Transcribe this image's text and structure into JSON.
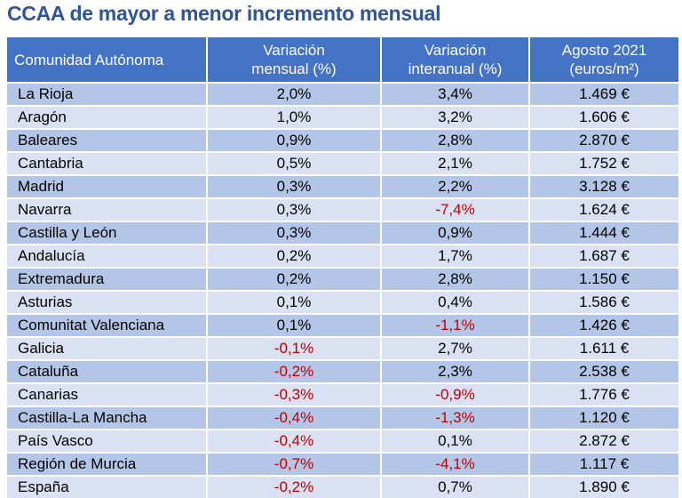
{
  "title": "CCAA de mayor a menor incremento mensual",
  "colors": {
    "header_bg": "#4472c4",
    "row_dark": "#b4c6e7",
    "row_light": "#d9e1f2",
    "negative": "#c00000",
    "title": "#2f5597"
  },
  "table": {
    "headers": [
      {
        "lines": [
          "Comunidad Autónoma"
        ]
      },
      {
        "lines": [
          "Variación",
          "mensual (%)"
        ]
      },
      {
        "lines": [
          "Variación",
          "interanual (%)"
        ]
      },
      {
        "lines": [
          "Agosto 2021",
          "(euros/m²)"
        ]
      }
    ],
    "rows": [
      [
        "La Rioja",
        "2,0%",
        "3,4%",
        "1.469 €"
      ],
      [
        "Aragón",
        "1,0%",
        "3,2%",
        "1.606 €"
      ],
      [
        "Baleares",
        "0,9%",
        "2,8%",
        "2.870 €"
      ],
      [
        "Cantabria",
        "0,5%",
        "2,1%",
        "1.752 €"
      ],
      [
        "Madrid",
        "0,3%",
        "2,2%",
        "3.128 €"
      ],
      [
        "Navarra",
        "0,3%",
        "-7,4%",
        "1.624 €"
      ],
      [
        "Castilla y León",
        "0,3%",
        "0,9%",
        "1.444 €"
      ],
      [
        "Andalucía",
        "0,2%",
        "1,7%",
        "1.687 €"
      ],
      [
        "Extremadura",
        "0,2%",
        "2,8%",
        "1.150 €"
      ],
      [
        "Asturias",
        "0,1%",
        "0,4%",
        "1.586 €"
      ],
      [
        "Comunitat Valenciana",
        "0,1%",
        "-1,1%",
        "1.426 €"
      ],
      [
        "Galicia",
        "-0,1%",
        "2,7%",
        "1.611 €"
      ],
      [
        "Cataluña",
        "-0,2%",
        "2,3%",
        "2.538 €"
      ],
      [
        "Canarias",
        "-0,3%",
        "-0,9%",
        "1.776 €"
      ],
      [
        "Castilla-La Mancha",
        "-0,4%",
        "-1,3%",
        "1.120 €"
      ],
      [
        "País Vasco",
        "-0,4%",
        "0,1%",
        "2.872 €"
      ],
      [
        "Región de Murcia",
        "-0,7%",
        "-4,1%",
        "1.117 €"
      ],
      [
        "España",
        "-0,2%",
        "0,7%",
        "1.890 €"
      ]
    ]
  }
}
